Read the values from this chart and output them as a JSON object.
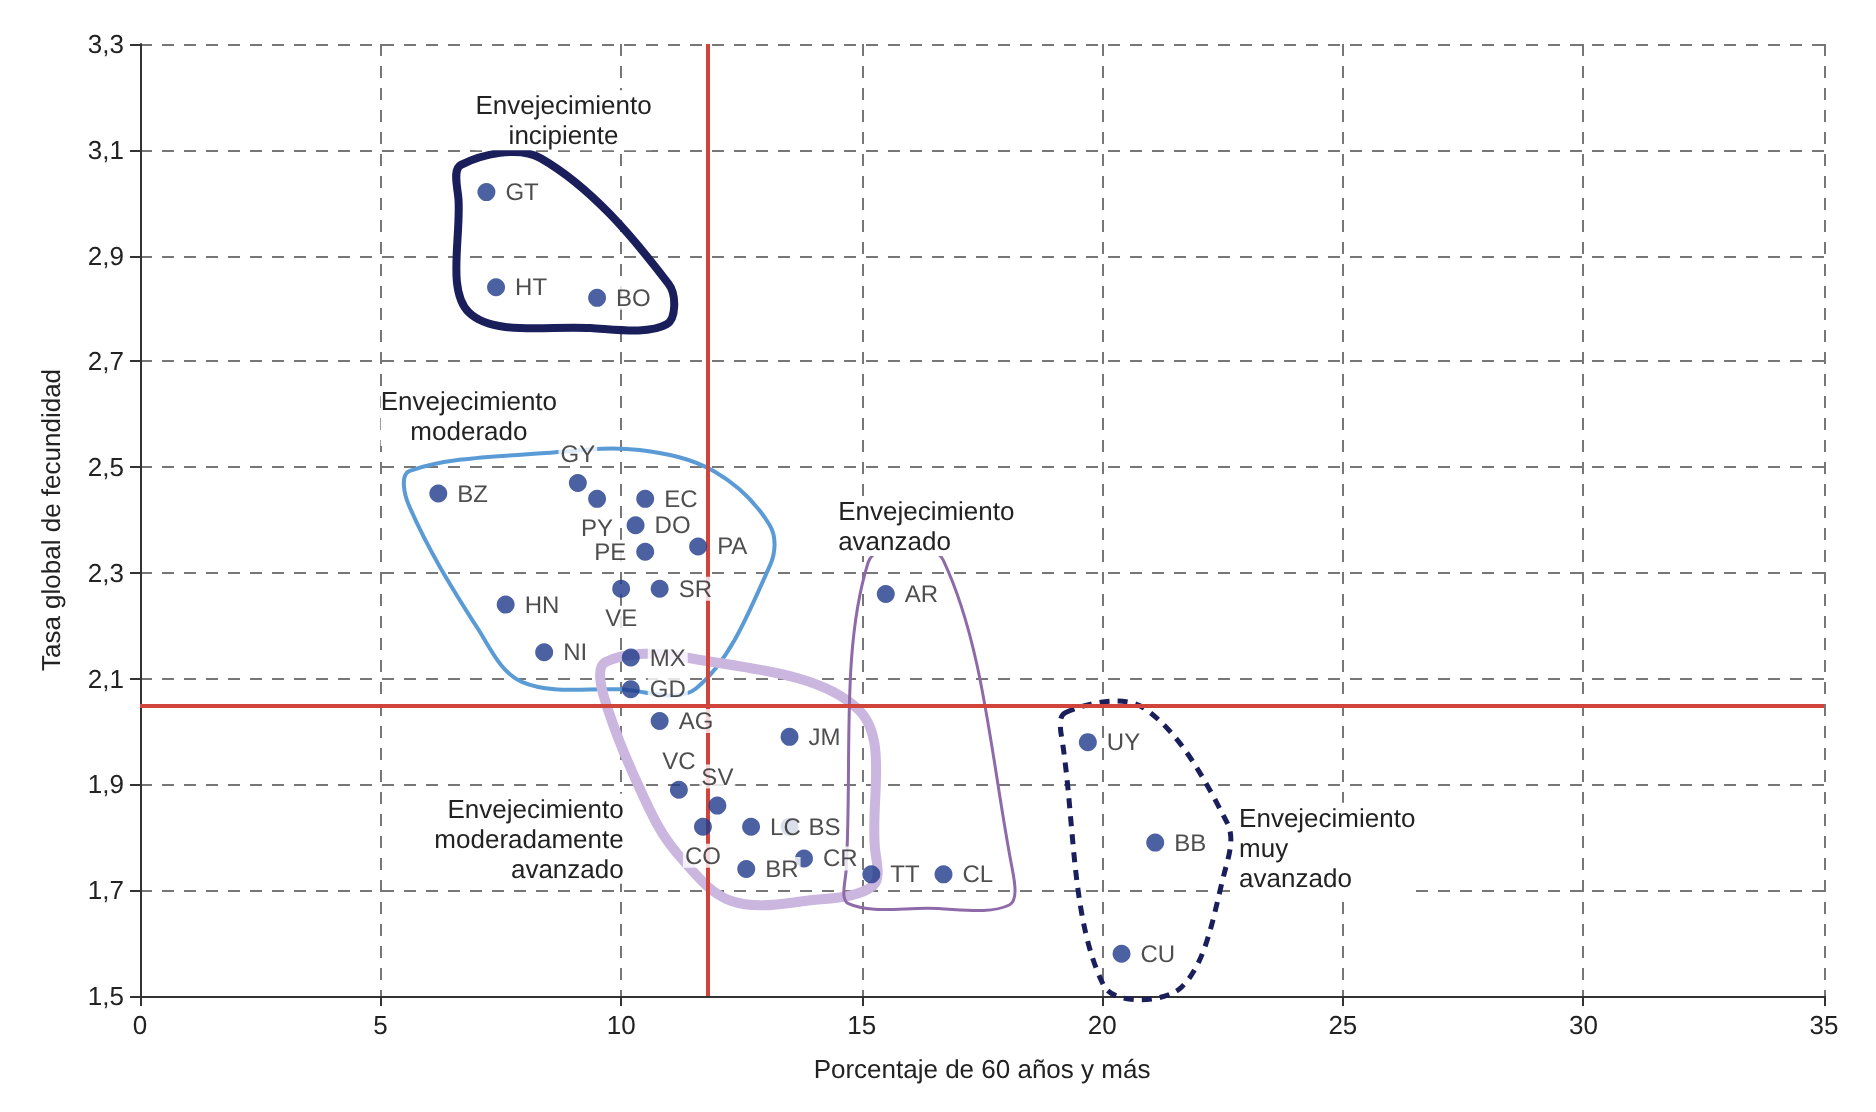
{
  "chart_data": {
    "type": "scatter",
    "xlabel": "Porcentaje de 60 años y más",
    "ylabel": "Tasa global de fecundidad",
    "xlim": [
      0,
      35
    ],
    "xticks": [
      0,
      5,
      10,
      15,
      20,
      25,
      30,
      35
    ],
    "ylim": [
      1.5,
      3.3
    ],
    "yticks": [
      {
        "value": 1.5,
        "label": "1,5"
      },
      {
        "value": 1.7,
        "label": "1,7"
      },
      {
        "value": 1.9,
        "label": "1,9"
      },
      {
        "value": 2.1,
        "label": "2,1"
      },
      {
        "value": 2.3,
        "label": "2,3"
      },
      {
        "value": 2.5,
        "label": "2,5"
      },
      {
        "value": 2.7,
        "label": "2,7"
      },
      {
        "value": 2.9,
        "label": "2,9"
      },
      {
        "value": 3.1,
        "label": "3,1"
      },
      {
        "value": 3.3,
        "label": "3,3"
      }
    ],
    "grid": true,
    "marker": "circle",
    "series": [
      {
        "name": "Envejecimiento incipiente",
        "color": "#1f3a8a",
        "x": [
          7.2,
          7.4,
          9.5
        ],
        "values": [
          3.02,
          2.84,
          2.82
        ],
        "value_labels": [
          "GT",
          "HT",
          "BO"
        ]
      },
      {
        "name": "Envejecimiento moderado",
        "color": "#1f3a8a",
        "x": [
          6.2,
          9.1,
          9.5,
          10.5,
          10.3,
          10.5,
          11.6,
          10.8,
          10.0,
          7.6,
          8.4,
          10.2
        ],
        "values": [
          2.45,
          2.47,
          2.44,
          2.44,
          2.39,
          2.34,
          2.35,
          2.27,
          2.27,
          2.24,
          2.15,
          2.14
        ],
        "value_labels": [
          "BZ",
          "GY",
          "PY",
          "EC",
          "DO",
          "PE",
          "PA",
          "SR",
          "VE",
          "HN",
          "NI",
          "MX"
        ]
      },
      {
        "name": "Envejecimiento moderadamente avanzado",
        "color": "#1f3a8a",
        "x": [
          10.2,
          10.8,
          11.2,
          12.0,
          11.7,
          12.7,
          13.5,
          13.8,
          12.6,
          13.5
        ],
        "values": [
          2.08,
          2.02,
          1.89,
          1.86,
          1.82,
          1.82,
          1.82,
          1.76,
          1.74,
          1.99
        ],
        "value_labels": [
          "GD",
          "AG",
          "VC",
          "SV",
          "CO",
          "LC",
          "BS",
          "CR",
          "BR",
          "JM"
        ]
      },
      {
        "name": "Envejecimiento avanzado",
        "color": "#1f3a8a",
        "x": [
          15.5,
          15.2,
          16.7
        ],
        "values": [
          2.26,
          1.73,
          1.73
        ],
        "value_labels": [
          "AR",
          "TT",
          "CL"
        ]
      },
      {
        "name": "Envejecimiento muy avanzado",
        "color": "#1f3a8a",
        "x": [
          19.7,
          21.1,
          20.4
        ],
        "values": [
          1.98,
          1.79,
          1.58
        ],
        "value_labels": [
          "UY",
          "BB",
          "CU"
        ]
      }
    ],
    "ref_lines": [
      {
        "axis": "x",
        "value": 11.8,
        "color": "#d0443c"
      },
      {
        "axis": "y",
        "value": 2.05,
        "color": "#d0443c"
      }
    ]
  }
}
